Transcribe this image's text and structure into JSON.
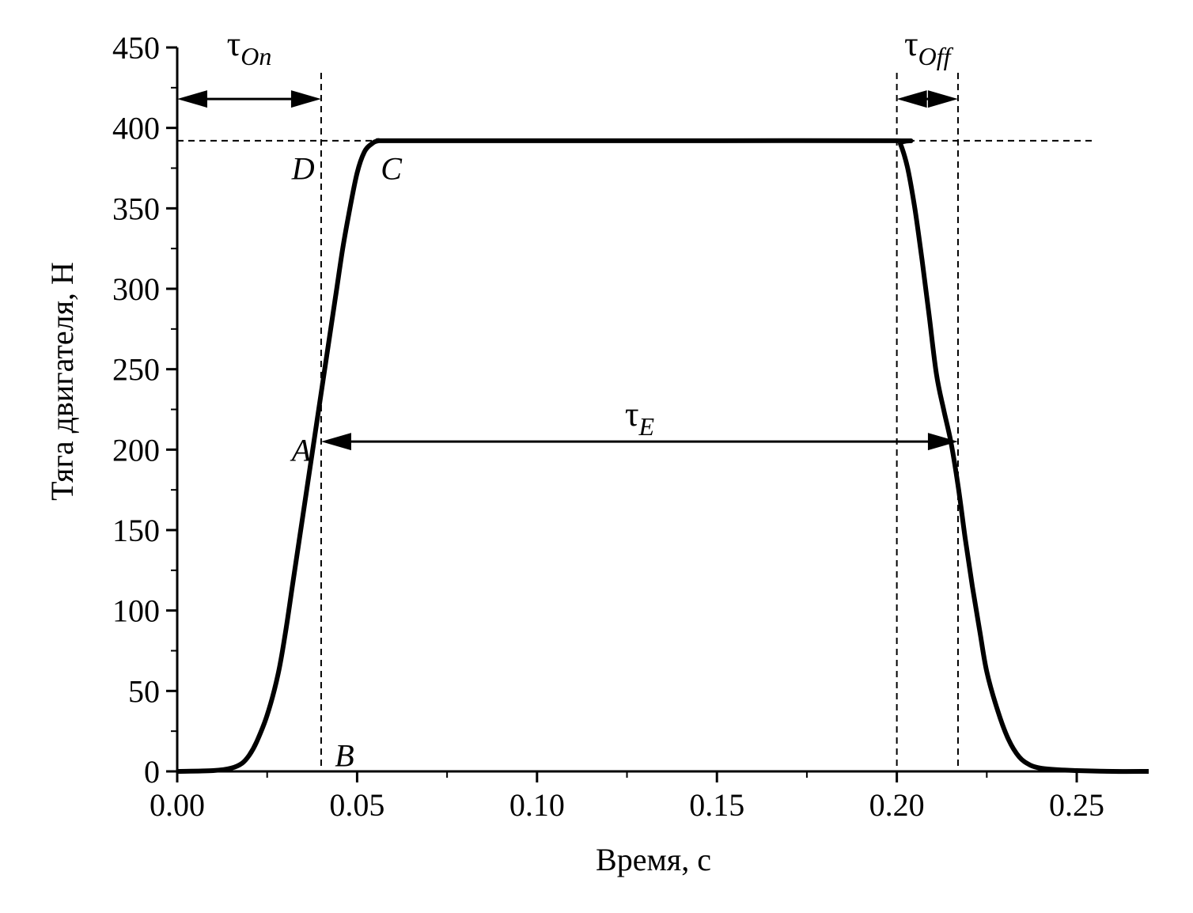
{
  "chart_data": {
    "type": "line",
    "xlabel": "Время, с",
    "ylabel": "Тяга двигателя, Н",
    "xlim": [
      0,
      0.27
    ],
    "ylim": [
      0,
      450
    ],
    "xticks": [
      0.0,
      0.05,
      0.1,
      0.15,
      0.2,
      0.25
    ],
    "xtick_labels": [
      "0.00",
      "0.05",
      "0.10",
      "0.15",
      "0.20",
      "0.25"
    ],
    "xminor_ticks": [
      0.025,
      0.075,
      0.125,
      0.175,
      0.225
    ],
    "yticks": [
      0,
      50,
      100,
      150,
      200,
      250,
      300,
      350,
      400,
      450
    ],
    "ytick_labels": [
      "0",
      "50",
      "100",
      "150",
      "200",
      "250",
      "300",
      "350",
      "400",
      "450"
    ],
    "grid": false,
    "series": [
      {
        "x": [
          0.0,
          0.01,
          0.015,
          0.018,
          0.02,
          0.022,
          0.025,
          0.028,
          0.03,
          0.032,
          0.034,
          0.036,
          0.038,
          0.04,
          0.042,
          0.044,
          0.046,
          0.048,
          0.05,
          0.052,
          0.054,
          0.056,
          0.06,
          0.1,
          0.15,
          0.2,
          0.201,
          0.203,
          0.205,
          0.207,
          0.209,
          0.211,
          0.213,
          0.215,
          0.217,
          0.219,
          0.221,
          0.223,
          0.225,
          0.228,
          0.231,
          0.234,
          0.237,
          0.24,
          0.245,
          0.25,
          0.26,
          0.27
        ],
        "values": [
          0,
          0.5,
          2,
          5,
          10,
          18,
          35,
          60,
          85,
          115,
          145,
          175,
          205,
          235,
          265,
          295,
          325,
          350,
          372,
          385,
          390,
          392,
          392,
          392,
          392,
          392,
          390,
          375,
          350,
          318,
          283,
          247,
          225,
          205,
          178,
          145,
          115,
          88,
          62,
          38,
          20,
          9,
          4,
          2,
          1,
          0.5,
          0,
          0
        ]
      }
    ],
    "reference_lines": {
      "vertical": [
        0.04,
        0.2,
        0.217
      ],
      "horizontal": [
        392
      ]
    },
    "annotations": {
      "points": [
        {
          "label": "D",
          "x": 0.035,
          "y": 375
        },
        {
          "label": "C",
          "x": 0.0595,
          "y": 375
        },
        {
          "label": "A",
          "x": 0.0345,
          "y": 200
        },
        {
          "label": "B",
          "x": 0.0465,
          "y": 10
        }
      ],
      "arrows": [
        {
          "label": "τ",
          "sub": "On",
          "x1": 0.0,
          "x2": 0.04,
          "y": 418,
          "label_x": 0.02,
          "label_y": 445
        },
        {
          "label": "τ",
          "sub": "Off",
          "x1": 0.2,
          "x2": 0.217,
          "y": 418,
          "label_x": 0.2085,
          "label_y": 445
        },
        {
          "label": "τ",
          "sub": "E",
          "x1": 0.04,
          "x2": 0.217,
          "y": 205,
          "label_x": 0.1285,
          "label_y": 215
        }
      ]
    }
  }
}
